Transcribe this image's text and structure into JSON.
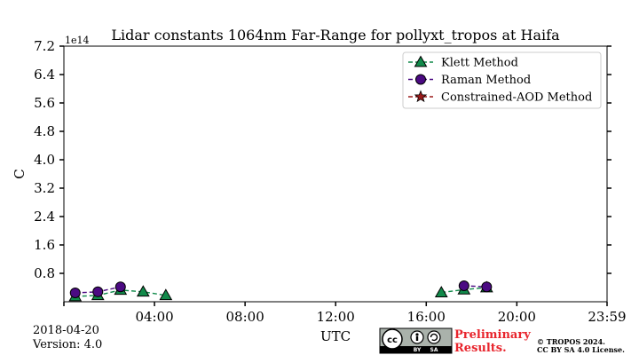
{
  "chart_data": {
    "type": "line",
    "title": "Lidar constants 1064nm Far-Range for pollyxt_tropos at Haifa",
    "xlabel": "UTC",
    "ylabel": "C",
    "y_multiplier_label": "1e14",
    "xlim": [
      0,
      1439
    ],
    "ylim": [
      0,
      7.2
    ],
    "xtick_values": [
      0,
      240,
      480,
      720,
      960,
      1200,
      1439
    ],
    "xtick_labels": [
      "",
      "04:00",
      "08:00",
      "12:00",
      "16:00",
      "20:00",
      "23:59"
    ],
    "ytick_values": [
      0.8,
      1.6,
      2.4,
      3.2,
      4.0,
      4.8,
      5.6,
      6.4,
      7.2
    ],
    "ytick_labels": [
      "0.8",
      "1.6",
      "2.4",
      "3.2",
      "4.0",
      "4.8",
      "5.6",
      "6.4",
      "7.2"
    ],
    "legend_position": "top-right",
    "series": [
      {
        "name": "Klett Method",
        "color": "#118a4a",
        "marker": "triangle",
        "segments": [
          [
            {
              "x": 30,
              "y": 0.15
            },
            {
              "x": 90,
              "y": 0.18
            },
            {
              "x": 150,
              "y": 0.33
            },
            {
              "x": 210,
              "y": 0.28
            },
            {
              "x": 270,
              "y": 0.18
            }
          ],
          [
            {
              "x": 1000,
              "y": 0.26
            },
            {
              "x": 1060,
              "y": 0.34
            },
            {
              "x": 1120,
              "y": 0.4
            }
          ]
        ]
      },
      {
        "name": "Raman Method",
        "color": "#4b0a82",
        "marker": "circle",
        "segments": [
          [
            {
              "x": 30,
              "y": 0.25
            },
            {
              "x": 90,
              "y": 0.28
            },
            {
              "x": 150,
              "y": 0.42
            }
          ],
          [
            {
              "x": 1060,
              "y": 0.45
            },
            {
              "x": 1120,
              "y": 0.42
            }
          ]
        ]
      },
      {
        "name": "Constrained-AOD Method",
        "color": "#9b1b1b",
        "marker": "star",
        "segments": []
      }
    ]
  },
  "footer": {
    "date": "2018-04-20",
    "version": "Version: 4.0",
    "cc_badge": "cc",
    "cc_by": "BY",
    "cc_sa": "SA",
    "prelim_line1": "Preliminary",
    "prelim_line2": "Results.",
    "copyright_line1": "© TROPOS 2024.",
    "copyright_line2": "CC BY SA 4.0 License."
  },
  "colors": {
    "klett": "#118a4a",
    "raman": "#4b0a82",
    "constrained": "#9b1b1b",
    "prelim": "#e8252d"
  }
}
